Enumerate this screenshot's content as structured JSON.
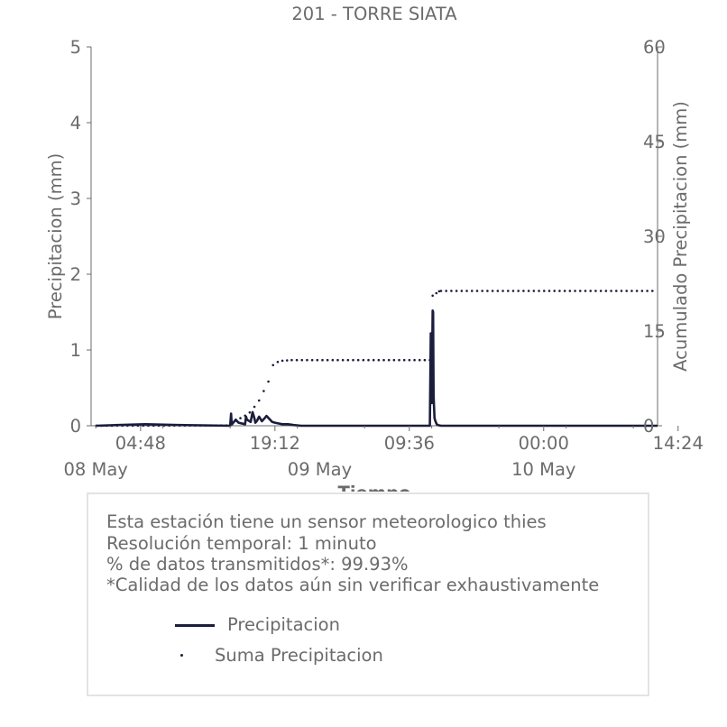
{
  "chart_data": {
    "type": "line",
    "title": "201 - TORRE SIATA",
    "xlabel": "Tiempo",
    "ylabel": "Precipitacion (mm)",
    "y2label": "Acumulado Precipitacion (mm)",
    "ylim": [
      0,
      5
    ],
    "y2lim": [
      0,
      60
    ],
    "y_ticks": [
      "0",
      "1",
      "2",
      "3",
      "4",
      "5"
    ],
    "y2_ticks": [
      "0",
      "15",
      "30",
      "45",
      "60"
    ],
    "x_time_ticks": [
      "04:48",
      "19:12",
      "09:36",
      "00:00",
      "14:24"
    ],
    "x_date_ticks": [
      "08 May",
      "09 May",
      "10 May"
    ],
    "xlim_hours": [
      -0.5,
      60.2
    ],
    "x_units": "hours since 08 May 00:00",
    "series": [
      {
        "name": "Precipitacion",
        "color": "#1b1d3d",
        "style": "line",
        "x": [
          0,
          5.3,
          8.8,
          14.4,
          14.5,
          14.55,
          14.6,
          15.0,
          15.3,
          16.0,
          16.1,
          16.2,
          16.6,
          16.8,
          17.0,
          17.1,
          17.3,
          17.5,
          17.8,
          18.1,
          18.3,
          18.6,
          18.9,
          19.2,
          19.6,
          20.0,
          20.6,
          21.2,
          22.0,
          35.0,
          35.8,
          35.9,
          36.0,
          36.1,
          36.15,
          36.2,
          36.3,
          36.4,
          36.5,
          36.6,
          37.0,
          60.2
        ],
        "y": [
          0,
          0.02,
          0.01,
          0,
          0.16,
          0.05,
          0.02,
          0.08,
          0.04,
          0.02,
          0.12,
          0.08,
          0.05,
          0.18,
          0.1,
          0.04,
          0.07,
          0.12,
          0.06,
          0.1,
          0.13,
          0.09,
          0.05,
          0.04,
          0.03,
          0.02,
          0.02,
          0.01,
          0,
          0,
          0,
          1.22,
          0.3,
          1.52,
          1.5,
          0.4,
          0.1,
          0.06,
          0.03,
          0.01,
          0,
          0
        ]
      },
      {
        "name": "Suma Precipitacion",
        "color": "#1b1d3d",
        "style": "dots",
        "x": [
          -0.5,
          14.0,
          14.5,
          15.0,
          15.5,
          16.0,
          16.5,
          17.0,
          17.5,
          18.0,
          18.5,
          19.0,
          19.5,
          20.0,
          20.5,
          21.0,
          35.8,
          36.1,
          36.5,
          36.8,
          37.0,
          60.2
        ],
        "y": [
          0,
          0.05,
          0.4,
          0.8,
          1.2,
          1.6,
          2.1,
          3.0,
          4.0,
          5.5,
          7.0,
          9.6,
          10.1,
          10.3,
          10.35,
          10.4,
          10.4,
          20.6,
          21.0,
          21.3,
          21.35,
          21.35
        ]
      }
    ],
    "grid": false,
    "legend": "inside bottom box"
  },
  "info": {
    "lines": [
      "Esta estación tiene un sensor meteorologico thies",
      "Resolución temporal: 1 minuto",
      "% de datos transmitidos*: 99.93%",
      "*Calidad de los datos aún sin verificar exhaustivamente"
    ]
  },
  "legend": {
    "items": [
      "Precipitacion",
      "Suma Precipitacion"
    ]
  }
}
